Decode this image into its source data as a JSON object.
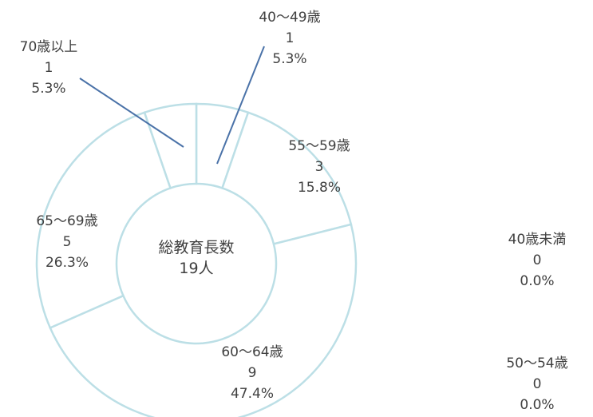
{
  "chart_data": {
    "type": "pie",
    "style": "donut",
    "center_text": [
      "総教育長数",
      "19人"
    ],
    "colors": {
      "ring_stroke": "#bcdfe6",
      "fill": "#ffffff",
      "leader_line": "#4a72a8",
      "text": "#404040"
    },
    "slices": [
      {
        "label": "40歳未満",
        "count": "0",
        "percent": "0.0%",
        "value": 0
      },
      {
        "label": "40～49歳",
        "count": "1",
        "percent": "5.3%",
        "value": 1
      },
      {
        "label": "50～54歳",
        "count": "0",
        "percent": "0.0%",
        "value": 0
      },
      {
        "label": "55～59歳",
        "count": "3",
        "percent": "15.8%",
        "value": 3
      },
      {
        "label": "60～64歳",
        "count": "9",
        "percent": "47.4%",
        "value": 9
      },
      {
        "label": "65～69歳",
        "count": "5",
        "percent": "26.3%",
        "value": 5
      },
      {
        "label": "70歳以上",
        "count": "1",
        "percent": "5.3%",
        "value": 1
      }
    ]
  }
}
